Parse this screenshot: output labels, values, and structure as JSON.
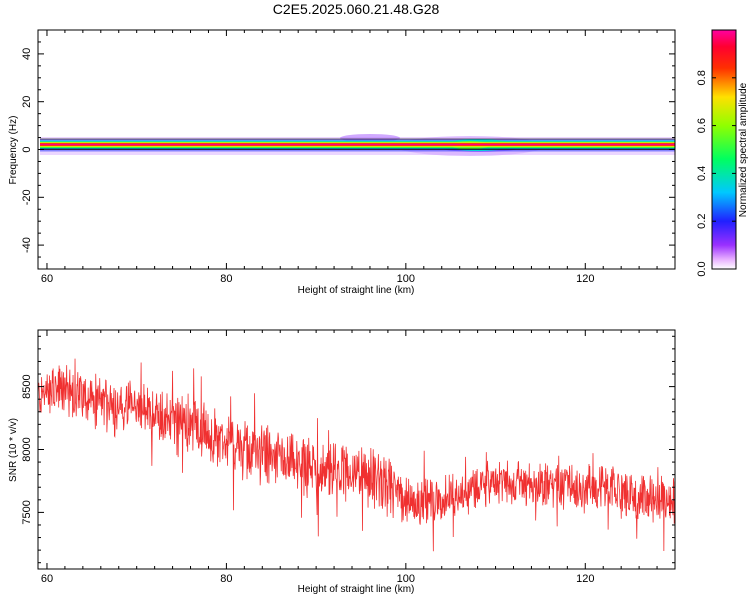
{
  "title": "C2E5.2025.060.21.48.G28",
  "chart_data": [
    {
      "type": "heatmap",
      "name": "spectrogram",
      "xlabel": "Height of straight line (km)",
      "ylabel": "Frequency (Hz)",
      "xlim": [
        59,
        130
      ],
      "ylim": [
        -50,
        50
      ],
      "x_ticks": [
        60,
        80,
        100,
        120
      ],
      "y_ticks": [
        40,
        20,
        0,
        -20,
        -40
      ],
      "y_tick_labels": [
        "40",
        "20",
        "0",
        "-20",
        "-40"
      ],
      "colorbar": {
        "label": "Normalized spectral amplitude",
        "range": [
          0.0,
          1.0
        ],
        "ticks": [
          0.0,
          0.2,
          0.4,
          0.6,
          0.8
        ],
        "tick_labels": [
          "0.0",
          "0.2",
          "0.4",
          "0.6",
          "0.8"
        ],
        "colormap": "rainbow (violet-blue-cyan-green-yellow-red-magenta)"
      },
      "band": {
        "center_frequency_hz": 1.5,
        "description": "strong narrow line near 0-2 Hz across full height range, broadening near 105-112 km"
      }
    },
    {
      "type": "line",
      "name": "snr",
      "xlabel": "Height of straight line (km)",
      "ylabel": "SNR (10 * v/v)",
      "xlim": [
        59,
        130
      ],
      "ylim": [
        7050,
        8950
      ],
      "x_ticks": [
        60,
        80,
        100,
        120
      ],
      "y_ticks": [
        7500,
        8000,
        8500
      ],
      "color": "#f03030",
      "trend_x": [
        59,
        62,
        66,
        70,
        75,
        80,
        85,
        90,
        95,
        98,
        100,
        103,
        106,
        108,
        110,
        115,
        120,
        125,
        130
      ],
      "trend_y": [
        8420,
        8480,
        8380,
        8330,
        8230,
        8060,
        7920,
        7840,
        7800,
        7700,
        7580,
        7600,
        7640,
        7700,
        7740,
        7720,
        7720,
        7630,
        7600
      ]
    }
  ]
}
